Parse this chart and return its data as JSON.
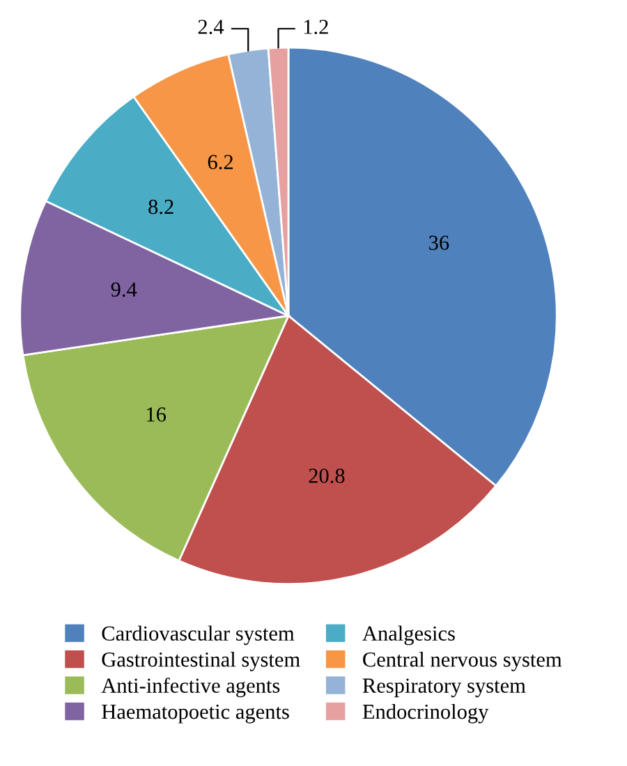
{
  "chart_data": {
    "type": "pie",
    "categories": [
      "Cardiovascular system",
      "Gastrointestinal system",
      "Anti-infective agents",
      "Haematopoetic agents",
      "Analgesics",
      "Central nervous system",
      "Respiratory system",
      "Endocrinology"
    ],
    "values": [
      36,
      20.8,
      16,
      9.4,
      8.2,
      6.2,
      2.4,
      1.2
    ],
    "colors": [
      "#4f81bd",
      "#c0504d",
      "#9bbb59",
      "#8064a2",
      "#4bacc6",
      "#f79646",
      "#95b3d7",
      "#e6a0a0"
    ],
    "data_labels": true,
    "legend": "bottom"
  }
}
